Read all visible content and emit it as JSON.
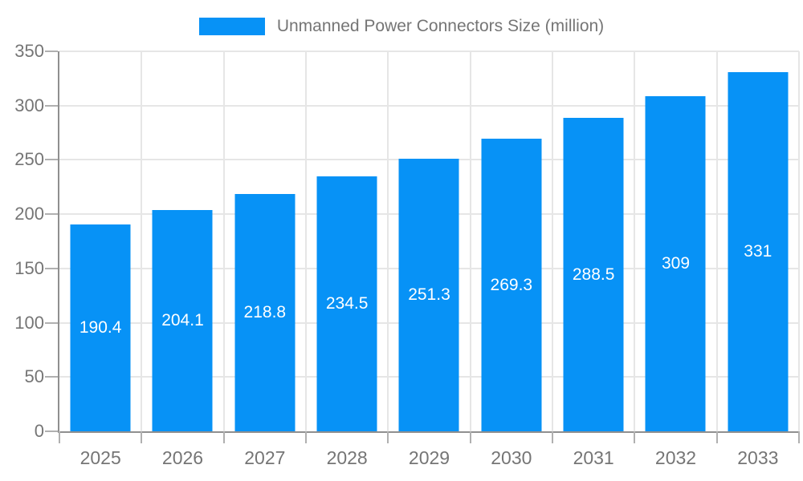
{
  "chart_data": {
    "type": "bar",
    "title": "",
    "legend": {
      "label": "Unmanned Power Connectors Size (million)",
      "position": "top"
    },
    "categories": [
      "2025",
      "2026",
      "2027",
      "2028",
      "2029",
      "2030",
      "2031",
      "2032",
      "2033"
    ],
    "values": [
      190.4,
      204.1,
      218.8,
      234.5,
      251.3,
      269.3,
      288.5,
      309,
      331
    ],
    "value_labels": [
      "190.4",
      "204.1",
      "218.8",
      "234.5",
      "251.3",
      "269.3",
      "288.5",
      "309",
      "331"
    ],
    "xlabel": "",
    "ylabel": "",
    "ylim": [
      0,
      350
    ],
    "yticks": [
      0,
      50,
      100,
      150,
      200,
      250,
      300,
      350
    ],
    "grid": true,
    "colors": {
      "bar": "#0792f6",
      "axis": "#8f8f8f",
      "gridline": "#e6e6e6",
      "tick": "#b0b0b0",
      "text": "#757575",
      "bar_label": "#ffffff",
      "background": "#ffffff"
    }
  }
}
